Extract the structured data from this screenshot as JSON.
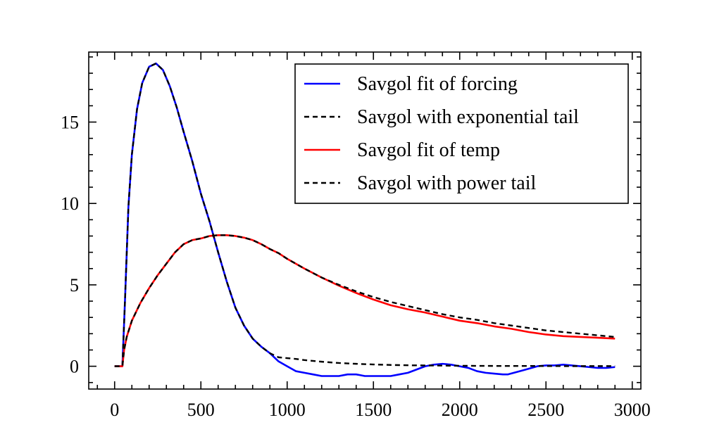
{
  "chart_data": {
    "type": "line",
    "title": "",
    "xlabel": "",
    "ylabel": "",
    "xlim": [
      -150,
      3050
    ],
    "ylim": [
      -1.4,
      19.3
    ],
    "xticks": [
      0,
      500,
      1000,
      1500,
      2000,
      2500,
      3000
    ],
    "xtick_labels": [
      "0",
      "500",
      "1000",
      "1500",
      "2000",
      "2500",
      "3000"
    ],
    "yticks": [
      0,
      5,
      10,
      15
    ],
    "ytick_labels": [
      "0",
      "5",
      "10",
      "15"
    ],
    "grid": false,
    "legend_position": "upper-right",
    "series": [
      {
        "name": "Savgol fit of forcing",
        "color": "#0000ff",
        "dash": "solid",
        "x": [
          0,
          45,
          60,
          80,
          100,
          130,
          160,
          200,
          240,
          280,
          320,
          360,
          400,
          450,
          500,
          550,
          600,
          650,
          700,
          750,
          800,
          850,
          900,
          950,
          1000,
          1050,
          1100,
          1150,
          1200,
          1250,
          1300,
          1350,
          1400,
          1450,
          1500,
          1550,
          1600,
          1650,
          1700,
          1750,
          1800,
          1850,
          1900,
          1950,
          2000,
          2050,
          2100,
          2150,
          2200,
          2250,
          2280,
          2350,
          2400,
          2450,
          2500,
          2550,
          2600,
          2650,
          2700,
          2750,
          2800,
          2850,
          2900
        ],
        "y": [
          0,
          0,
          4.0,
          9.8,
          13.0,
          15.8,
          17.4,
          18.4,
          18.6,
          18.2,
          17.2,
          15.9,
          14.4,
          12.6,
          10.6,
          8.9,
          7.0,
          5.2,
          3.6,
          2.5,
          1.7,
          1.2,
          0.8,
          0.3,
          0.0,
          -0.3,
          -0.4,
          -0.5,
          -0.6,
          -0.6,
          -0.6,
          -0.5,
          -0.5,
          -0.6,
          -0.6,
          -0.6,
          -0.6,
          -0.5,
          -0.4,
          -0.2,
          0.0,
          0.1,
          0.15,
          0.1,
          0.0,
          -0.1,
          -0.3,
          -0.4,
          -0.45,
          -0.5,
          -0.5,
          -0.3,
          -0.15,
          0.0,
          0.05,
          0.05,
          0.1,
          0.05,
          0.0,
          -0.05,
          -0.1,
          -0.1,
          -0.05
        ]
      },
      {
        "name": "Savgol with exponential tail",
        "color": "#000000",
        "dash": "dashed",
        "x": [
          0,
          45,
          60,
          80,
          100,
          130,
          160,
          200,
          240,
          280,
          320,
          360,
          400,
          450,
          500,
          550,
          600,
          650,
          700,
          750,
          800,
          850,
          900,
          950,
          1000,
          1050,
          1100,
          1200,
          1300,
          1400,
          1500,
          1600,
          1700,
          1800,
          1900,
          2000,
          2200,
          2400,
          2600,
          2900
        ],
        "y": [
          0,
          0,
          4.0,
          9.8,
          13.0,
          15.8,
          17.4,
          18.4,
          18.6,
          18.2,
          17.2,
          15.9,
          14.4,
          12.6,
          10.6,
          8.9,
          7.0,
          5.2,
          3.6,
          2.5,
          1.7,
          1.2,
          0.8,
          0.55,
          0.5,
          0.45,
          0.38,
          0.28,
          0.2,
          0.15,
          0.11,
          0.08,
          0.06,
          0.05,
          0.04,
          0.03,
          0.02,
          0.02,
          0.01,
          0.01
        ]
      },
      {
        "name": "Savgol fit of temp",
        "color": "#ff0000",
        "dash": "solid",
        "x": [
          0,
          45,
          55,
          70,
          100,
          150,
          200,
          250,
          300,
          350,
          400,
          450,
          500,
          550,
          600,
          650,
          700,
          750,
          800,
          850,
          900,
          950,
          1000,
          1100,
          1200,
          1300,
          1400,
          1500,
          1600,
          1700,
          1800,
          1900,
          2000,
          2100,
          2200,
          2300,
          2400,
          2500,
          2600,
          2700,
          2800,
          2900
        ],
        "y": [
          0,
          0,
          1.0,
          1.8,
          2.8,
          3.9,
          4.8,
          5.6,
          6.3,
          7.0,
          7.5,
          7.75,
          7.85,
          8.0,
          8.05,
          8.05,
          8.0,
          7.9,
          7.75,
          7.5,
          7.2,
          6.95,
          6.6,
          6.0,
          5.45,
          4.95,
          4.5,
          4.1,
          3.75,
          3.5,
          3.3,
          3.05,
          2.8,
          2.65,
          2.45,
          2.3,
          2.1,
          1.95,
          1.85,
          1.8,
          1.75,
          1.7
        ]
      },
      {
        "name": "Savgol with power tail",
        "color": "#000000",
        "dash": "dashed",
        "x": [
          0,
          45,
          55,
          70,
          100,
          150,
          200,
          250,
          300,
          350,
          400,
          450,
          500,
          550,
          600,
          650,
          700,
          750,
          800,
          850,
          900,
          950,
          1000,
          1100,
          1200,
          1300,
          1400,
          1500,
          1600,
          1700,
          1800,
          1900,
          2000,
          2100,
          2200,
          2300,
          2400,
          2500,
          2600,
          2700,
          2800,
          2900
        ],
        "y": [
          0,
          0,
          1.0,
          1.8,
          2.8,
          3.9,
          4.8,
          5.6,
          6.3,
          7.0,
          7.5,
          7.75,
          7.85,
          8.0,
          8.05,
          8.05,
          8.0,
          7.9,
          7.75,
          7.5,
          7.2,
          6.95,
          6.6,
          6.0,
          5.45,
          5.0,
          4.6,
          4.25,
          3.95,
          3.7,
          3.45,
          3.2,
          3.0,
          2.85,
          2.65,
          2.5,
          2.35,
          2.2,
          2.1,
          2.0,
          1.9,
          1.8
        ]
      }
    ]
  }
}
